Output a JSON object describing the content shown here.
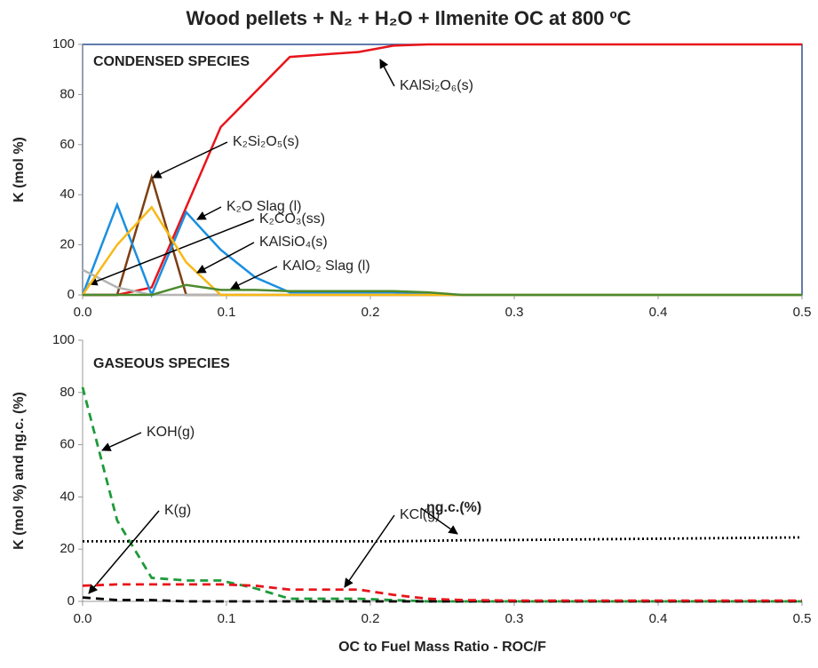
{
  "chart_data": [
    {
      "type": "line",
      "title": "Wood pellets + N₂ + H₂O +  Ilmenite OC at 800 ºC",
      "annotation": "CONDENSED SPECIES",
      "ylabel": "K (mol %)",
      "x": [
        0,
        0.024,
        0.048,
        0.072,
        0.096,
        0.12,
        0.144,
        0.168,
        0.192,
        0.216,
        0.24,
        0.264,
        0.3,
        0.4,
        0.5
      ],
      "xlim": [
        0,
        0.5
      ],
      "xticks": [
        {
          "value": 0,
          "label": "0.0"
        },
        0.1,
        0.2,
        0.3,
        0.4,
        0.5
      ],
      "ylim": [
        0,
        100
      ],
      "yticks": [
        0,
        20,
        40,
        60,
        80,
        100
      ],
      "series": [
        {
          "name": "KAlSi₂O₆(s)",
          "color": "#e8141b",
          "dash": "solid",
          "values": [
            0,
            0,
            3,
            35,
            67,
            81,
            95,
            96,
            97,
            99.5,
            100,
            100,
            100,
            100,
            100
          ]
        },
        {
          "name": "K₂Si₂O₅(s)",
          "color": "#7b3f12",
          "dash": "solid",
          "values": [
            0,
            0,
            47,
            0,
            0,
            0,
            0,
            0,
            0,
            0,
            0,
            0,
            0,
            0,
            0
          ]
        },
        {
          "name": "K₂O Slag (l)",
          "color": "#1b8fe0",
          "dash": "solid",
          "values": [
            0,
            36,
            0,
            33,
            18,
            7,
            1,
            1,
            1,
            1,
            0.5,
            0,
            0,
            0,
            0
          ]
        },
        {
          "name": "K₂CO₃(ss)",
          "color": "#b4b4b4",
          "dash": "solid",
          "values": [
            10,
            3,
            0,
            0,
            0,
            0,
            0,
            0,
            0,
            0,
            0,
            0,
            0,
            0,
            0
          ]
        },
        {
          "name": "KAlSiO₄(s)",
          "color": "#f7b916",
          "dash": "solid",
          "values": [
            0,
            20,
            35,
            13,
            0,
            0,
            0,
            0,
            0,
            0,
            0,
            0,
            0,
            0,
            0
          ]
        },
        {
          "name": "KAlO₂ Slag (l)",
          "color": "#4d8a2e",
          "dash": "solid",
          "values": [
            0,
            0,
            0,
            4,
            2,
            2,
            1.5,
            1.5,
            1.5,
            1.5,
            1,
            0,
            0,
            0,
            0
          ]
        }
      ]
    },
    {
      "type": "line",
      "annotation": "GASEOUS SPECIES",
      "ylabel": "K (mol %) and ηg.c. (%)",
      "xlabel": "OC to Fuel Mass Ratio - ROC/F",
      "x": [
        0,
        0.024,
        0.048,
        0.072,
        0.096,
        0.12,
        0.144,
        0.168,
        0.192,
        0.216,
        0.24,
        0.264,
        0.3,
        0.4,
        0.5
      ],
      "xlim": [
        0,
        0.5
      ],
      "xticks": [
        {
          "value": 0,
          "label": "0.0"
        },
        0.1,
        0.2,
        0.3,
        0.4,
        0.5
      ],
      "ylim": [
        0,
        100
      ],
      "yticks": [
        0,
        20,
        40,
        60,
        80,
        100
      ],
      "series": [
        {
          "name": "KOH(g)",
          "color": "#1e9a3a",
          "dash": "dashed",
          "values": [
            82,
            31,
            9,
            8,
            8,
            5,
            1,
            1,
            1,
            0.5,
            0,
            0,
            0,
            0,
            0
          ]
        },
        {
          "name": "K(g)",
          "color": "#000000",
          "dash": "dashed",
          "values": [
            1.5,
            0.5,
            0.5,
            0,
            0,
            0,
            0,
            0,
            0,
            0,
            0,
            0,
            0,
            0,
            0
          ]
        },
        {
          "name": "KCl(g)",
          "color": "#e8141b",
          "dash": "dashed",
          "values": [
            6,
            6.5,
            6.5,
            6.5,
            6.5,
            6,
            4.5,
            4.5,
            4.5,
            2.5,
            1,
            0.5,
            0.3,
            0.3,
            0.3
          ]
        },
        {
          "name": "ηg.c.(%)",
          "color": "#000000",
          "dash": "dotted",
          "values": [
            23,
            23,
            23,
            23,
            23,
            23,
            23,
            23,
            23,
            23,
            23.2,
            23.4,
            23.5,
            24,
            24.5
          ]
        }
      ]
    }
  ]
}
